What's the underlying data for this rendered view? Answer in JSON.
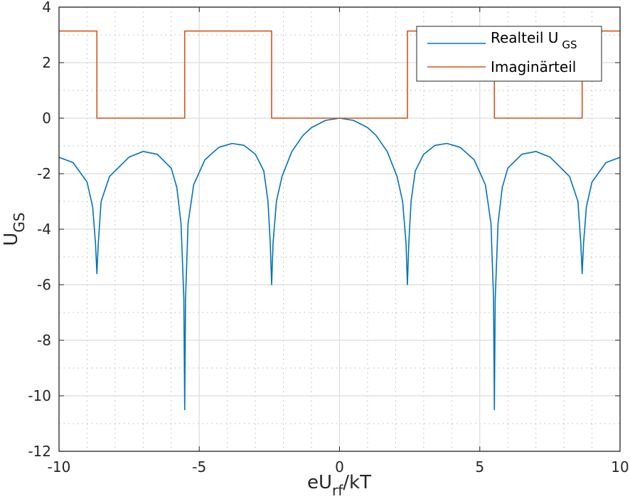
{
  "chart_data": {
    "type": "line",
    "xlabel": {
      "main": "eU",
      "sub": "rf",
      "rest": "/kT"
    },
    "ylabel": {
      "main": "U",
      "sub": "GS"
    },
    "xlim": [
      -10,
      10
    ],
    "ylim": [
      -12,
      4
    ],
    "xticks": [
      -10,
      -5,
      0,
      5,
      10
    ],
    "yticks": [
      -12,
      -10,
      -8,
      -6,
      -4,
      -2,
      0,
      2,
      4
    ],
    "grid": true,
    "minor_grid": true,
    "legend_position": "top-right",
    "series": [
      {
        "name": "Realteil U",
        "name_sub": "GS",
        "color": "#0072BD",
        "points": [
          [
            -10,
            -1.41
          ],
          [
            -9.5,
            -1.6
          ],
          [
            -9,
            -2.3
          ],
          [
            -8.8,
            -3.2
          ],
          [
            -8.7,
            -4.5
          ],
          [
            -8.65,
            -5.6
          ],
          [
            -8.6,
            -4.5
          ],
          [
            -8.5,
            -3.0
          ],
          [
            -8.2,
            -2.1
          ],
          [
            -7.5,
            -1.4
          ],
          [
            -7,
            -1.2
          ],
          [
            -6.5,
            -1.3
          ],
          [
            -6,
            -1.8
          ],
          [
            -5.8,
            -2.5
          ],
          [
            -5.65,
            -3.8
          ],
          [
            -5.55,
            -6.5
          ],
          [
            -5.52,
            -10.5
          ],
          [
            -5.49,
            -6.5
          ],
          [
            -5.4,
            -3.8
          ],
          [
            -5.2,
            -2.4
          ],
          [
            -4.8,
            -1.5
          ],
          [
            -4.3,
            -1.05
          ],
          [
            -3.83,
            -0.91
          ],
          [
            -3.4,
            -0.98
          ],
          [
            -3,
            -1.3
          ],
          [
            -2.7,
            -1.9
          ],
          [
            -2.55,
            -3.0
          ],
          [
            -2.47,
            -4.5
          ],
          [
            -2.42,
            -6.0
          ],
          [
            -2.37,
            -4.5
          ],
          [
            -2.25,
            -3.0
          ],
          [
            -2.05,
            -2.1
          ],
          [
            -1.7,
            -1.2
          ],
          [
            -1.3,
            -0.62
          ],
          [
            -1,
            -0.34
          ],
          [
            -0.5,
            -0.08
          ],
          [
            0,
            0
          ],
          [
            0.5,
            -0.08
          ],
          [
            1,
            -0.34
          ],
          [
            1.3,
            -0.62
          ],
          [
            1.7,
            -1.2
          ],
          [
            2.05,
            -2.1
          ],
          [
            2.25,
            -3.0
          ],
          [
            2.37,
            -4.5
          ],
          [
            2.42,
            -6.0
          ],
          [
            2.47,
            -4.5
          ],
          [
            2.55,
            -3.0
          ],
          [
            2.7,
            -1.9
          ],
          [
            3,
            -1.3
          ],
          [
            3.4,
            -0.98
          ],
          [
            3.83,
            -0.91
          ],
          [
            4.3,
            -1.05
          ],
          [
            4.8,
            -1.5
          ],
          [
            5.2,
            -2.4
          ],
          [
            5.4,
            -3.8
          ],
          [
            5.49,
            -6.5
          ],
          [
            5.52,
            -10.5
          ],
          [
            5.55,
            -6.5
          ],
          [
            5.65,
            -3.8
          ],
          [
            5.8,
            -2.5
          ],
          [
            6,
            -1.8
          ],
          [
            6.5,
            -1.3
          ],
          [
            7,
            -1.2
          ],
          [
            7.5,
            -1.4
          ],
          [
            8.2,
            -2.1
          ],
          [
            8.5,
            -3.0
          ],
          [
            8.6,
            -4.5
          ],
          [
            8.65,
            -5.6
          ],
          [
            8.7,
            -4.5
          ],
          [
            8.8,
            -3.2
          ],
          [
            9,
            -2.3
          ],
          [
            9.5,
            -1.6
          ],
          [
            10,
            -1.41
          ]
        ]
      },
      {
        "name": "Imaginärteil",
        "color": "#D95319",
        "points": [
          [
            -10,
            3.14
          ],
          [
            -8.65,
            3.14
          ],
          [
            -8.65,
            0
          ],
          [
            -5.52,
            0
          ],
          [
            -5.52,
            3.14
          ],
          [
            -2.42,
            3.14
          ],
          [
            -2.42,
            0
          ],
          [
            2.42,
            0
          ],
          [
            2.42,
            3.14
          ],
          [
            5.52,
            3.14
          ],
          [
            5.52,
            0
          ],
          [
            8.65,
            0
          ],
          [
            8.65,
            3.14
          ],
          [
            10,
            3.14
          ]
        ]
      }
    ]
  }
}
